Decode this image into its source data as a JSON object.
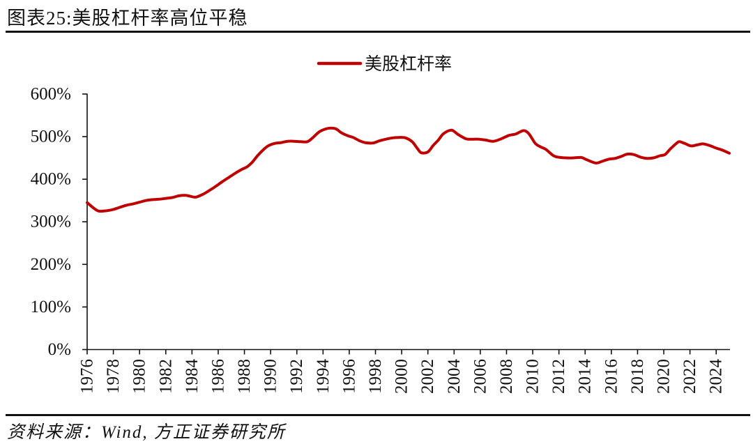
{
  "header": {
    "title": "图表25:美股杠杆率高位平稳"
  },
  "footer": {
    "source": "资料来源：Wind, 方正证券研究所"
  },
  "chart_data": {
    "type": "line",
    "title": "美股杠杆率高位平稳",
    "xlabel": "",
    "ylabel": "",
    "xlim": [
      1976,
      2025
    ],
    "ylim": [
      0,
      600
    ],
    "grid": false,
    "legend_position": "top-center",
    "legend": [
      {
        "label": "美股杠杆率",
        "color": "#C00000"
      }
    ],
    "y_ticks": [
      {
        "value": 0,
        "label": "0%"
      },
      {
        "value": 100,
        "label": "100%"
      },
      {
        "value": 200,
        "label": "200%"
      },
      {
        "value": 300,
        "label": "300%"
      },
      {
        "value": 400,
        "label": "400%"
      },
      {
        "value": 500,
        "label": "500%"
      },
      {
        "value": 600,
        "label": "600%"
      }
    ],
    "x_ticks": [
      {
        "value": 1976,
        "label": "1976"
      },
      {
        "value": 1978,
        "label": "1978"
      },
      {
        "value": 1980,
        "label": "1980"
      },
      {
        "value": 1982,
        "label": "1982"
      },
      {
        "value": 1984,
        "label": "1984"
      },
      {
        "value": 1986,
        "label": "1986"
      },
      {
        "value": 1988,
        "label": "1988"
      },
      {
        "value": 1990,
        "label": "1990"
      },
      {
        "value": 1992,
        "label": "1992"
      },
      {
        "value": 1994,
        "label": "1994"
      },
      {
        "value": 1996,
        "label": "1996"
      },
      {
        "value": 1998,
        "label": "1998"
      },
      {
        "value": 2000,
        "label": "2000"
      },
      {
        "value": 2002,
        "label": "2002"
      },
      {
        "value": 2004,
        "label": "2004"
      },
      {
        "value": 2006,
        "label": "2006"
      },
      {
        "value": 2008,
        "label": "2008"
      },
      {
        "value": 2010,
        "label": "2010"
      },
      {
        "value": 2012,
        "label": "2012"
      },
      {
        "value": 2014,
        "label": "2014"
      },
      {
        "value": 2016,
        "label": "2016"
      },
      {
        "value": 2018,
        "label": "2018"
      },
      {
        "value": 2020,
        "label": "2020"
      },
      {
        "value": 2022,
        "label": "2022"
      },
      {
        "value": 2024,
        "label": "2024"
      }
    ],
    "series": [
      {
        "name": "美股杠杆率",
        "color": "#C00000",
        "unit": "%",
        "x": [
          1976.0,
          1976.5,
          1976.9,
          1977.5,
          1978.0,
          1978.5,
          1979.0,
          1979.5,
          1980.0,
          1980.5,
          1981.0,
          1981.5,
          1982.0,
          1982.5,
          1983.0,
          1983.5,
          1984.0,
          1984.3,
          1984.8,
          1985.3,
          1985.8,
          1986.3,
          1986.8,
          1987.3,
          1987.8,
          1988.2,
          1988.6,
          1989.0,
          1989.4,
          1989.8,
          1990.3,
          1990.8,
          1991.3,
          1991.8,
          1992.3,
          1992.8,
          1993.2,
          1993.7,
          1994.2,
          1994.6,
          1995.0,
          1995.4,
          1995.9,
          1996.3,
          1996.8,
          1997.2,
          1997.8,
          1998.3,
          1998.8,
          1999.3,
          1999.8,
          2000.3,
          2000.8,
          2001.2,
          2001.5,
          2002.0,
          2002.4,
          2002.8,
          2003.2,
          2003.8,
          2004.3,
          2004.9,
          2005.4,
          2005.9,
          2006.4,
          2007.0,
          2007.6,
          2008.2,
          2008.7,
          2009.3,
          2009.7,
          2010.2,
          2010.6,
          2011.0,
          2011.6,
          2012.1,
          2012.6,
          2013.1,
          2013.7,
          2014.1,
          2014.8,
          2015.3,
          2015.8,
          2016.3,
          2016.8,
          2017.2,
          2017.7,
          2018.2,
          2018.7,
          2019.2,
          2019.7,
          2020.1,
          2020.5,
          2021.0,
          2021.2,
          2021.6,
          2022.1,
          2022.6,
          2023.0,
          2023.5,
          2024.0,
          2024.5,
          2025.0
        ],
        "values": [
          345,
          332,
          325,
          326,
          329,
          334,
          339,
          342,
          346,
          350,
          352,
          353,
          355,
          357,
          361,
          362,
          359,
          358,
          364,
          373,
          383,
          394,
          404,
          414,
          423,
          429,
          440,
          455,
          468,
          478,
          484,
          486,
          489,
          489,
          488,
          488,
          497,
          511,
          518,
          520,
          518,
          509,
          502,
          498,
          490,
          486,
          485,
          490,
          494,
          497,
          498,
          497,
          488,
          472,
          462,
          464,
          479,
          492,
          507,
          515,
          505,
          495,
          494,
          494,
          492,
          489,
          495,
          503,
          506,
          514,
          507,
          484,
          476,
          470,
          455,
          451,
          450,
          450,
          451,
          446,
          438,
          442,
          447,
          449,
          454,
          459,
          458,
          452,
          449,
          450,
          455,
          458,
          471,
          485,
          488,
          484,
          478,
          481,
          483,
          479,
          473,
          468,
          461
        ]
      }
    ]
  }
}
